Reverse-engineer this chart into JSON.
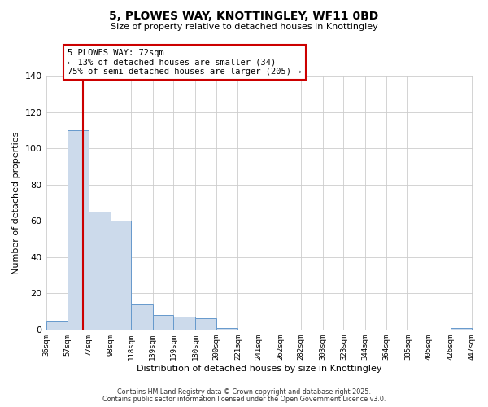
{
  "title": "5, PLOWES WAY, KNOTTINGLEY, WF11 0BD",
  "subtitle": "Size of property relative to detached houses in Knottingley",
  "xlabel": "Distribution of detached houses by size in Knottingley",
  "ylabel": "Number of detached properties",
  "bar_color": "#ccdaeb",
  "bar_edge_color": "#6699cc",
  "bin_edges": [
    36,
    57,
    77,
    98,
    118,
    139,
    159,
    180,
    200,
    221,
    241,
    262,
    282,
    303,
    323,
    344,
    364,
    385,
    405,
    426,
    447
  ],
  "bar_heights": [
    5,
    110,
    65,
    60,
    14,
    8,
    7,
    6,
    1,
    0,
    0,
    0,
    0,
    0,
    0,
    0,
    0,
    0,
    0,
    1
  ],
  "tick_labels": [
    "36sqm",
    "57sqm",
    "77sqm",
    "98sqm",
    "118sqm",
    "139sqm",
    "159sqm",
    "180sqm",
    "200sqm",
    "221sqm",
    "241sqm",
    "262sqm",
    "282sqm",
    "303sqm",
    "323sqm",
    "344sqm",
    "364sqm",
    "385sqm",
    "405sqm",
    "426sqm",
    "447sqm"
  ],
  "vline_x": 72,
  "vline_color": "#cc0000",
  "annotation_line1": "5 PLOWES WAY: 72sqm",
  "annotation_line2": "← 13% of detached houses are smaller (34)",
  "annotation_line3": "75% of semi-detached houses are larger (205) →",
  "annotation_box_color": "#ffffff",
  "annotation_box_edge": "#cc0000",
  "ylim": [
    0,
    140
  ],
  "yticks": [
    0,
    20,
    40,
    60,
    80,
    100,
    120,
    140
  ],
  "grid_color": "#cccccc",
  "background_color": "#ffffff",
  "footer1": "Contains HM Land Registry data © Crown copyright and database right 2025.",
  "footer2": "Contains public sector information licensed under the Open Government Licence v3.0."
}
